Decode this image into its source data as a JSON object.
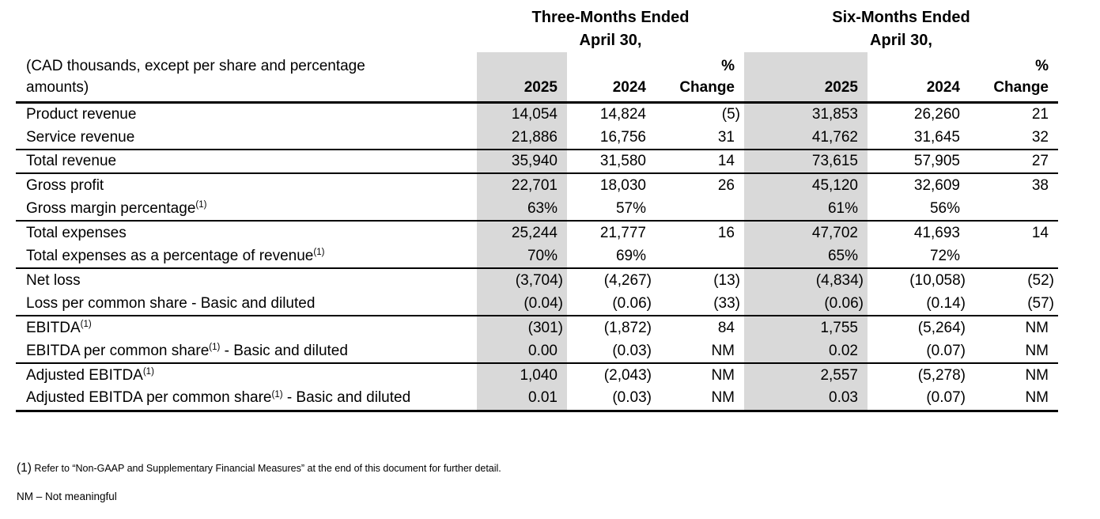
{
  "colors": {
    "shade": "#d9d9d9",
    "text": "#000000",
    "rule": "#000000",
    "background": "#ffffff"
  },
  "table": {
    "caption_line1": "(CAD thousands, except per share and percentage",
    "caption_line2": "amounts)",
    "periods": [
      {
        "title": "Three-Months Ended",
        "subtitle": "April 30,"
      },
      {
        "title": "Six-Months Ended",
        "subtitle": "April 30,"
      }
    ],
    "columns": {
      "year1": "2025",
      "year2": "2024",
      "pct_line1": "%",
      "pct_line2": "Change"
    },
    "rows": [
      {
        "label": "Product revenue",
        "sup": "",
        "suffix": "",
        "values": [
          "14,054",
          "14,824",
          "(5)",
          "31,853",
          "26,260",
          "21"
        ],
        "rule_below": false
      },
      {
        "label": "Service revenue",
        "sup": "",
        "suffix": "",
        "values": [
          "21,886",
          "16,756",
          "31",
          "41,762",
          "31,645",
          "32"
        ],
        "rule_below": true
      },
      {
        "label": "Total revenue",
        "sup": "",
        "suffix": "",
        "values": [
          "35,940",
          "31,580",
          "14",
          "73,615",
          "57,905",
          "27"
        ],
        "rule_below": true
      },
      {
        "label": "Gross profit",
        "sup": "",
        "suffix": "",
        "values": [
          "22,701",
          "18,030",
          "26",
          "45,120",
          "32,609",
          "38"
        ],
        "rule_below": false
      },
      {
        "label": "Gross margin percentage",
        "sup": "(1)",
        "suffix": "",
        "values": [
          "63%",
          "57%",
          "",
          "61%",
          "56%",
          ""
        ],
        "rule_below": true
      },
      {
        "label": "Total expenses",
        "sup": "",
        "suffix": "",
        "values": [
          "25,244",
          "21,777",
          "16",
          "47,702",
          "41,693",
          "14"
        ],
        "rule_below": false
      },
      {
        "label": "Total expenses as a percentage of revenue",
        "sup": "(1)",
        "suffix": "",
        "values": [
          "70%",
          "69%",
          "",
          "65%",
          "72%",
          ""
        ],
        "rule_below": true
      },
      {
        "label": "Net loss",
        "sup": "",
        "suffix": "",
        "values": [
          "(3,704)",
          "(4,267)",
          "(13)",
          "(4,834)",
          "(10,058)",
          "(52)"
        ],
        "rule_below": false
      },
      {
        "label": "Loss per common share - Basic and diluted",
        "sup": "",
        "suffix": "",
        "values": [
          "(0.04)",
          "(0.06)",
          "(33)",
          "(0.06)",
          "(0.14)",
          "(57)"
        ],
        "rule_below": true
      },
      {
        "label": "EBITDA",
        "sup": "(1)",
        "suffix": "",
        "values": [
          "(301)",
          "(1,872)",
          "84",
          "1,755",
          "(5,264)",
          "NM"
        ],
        "rule_below": false
      },
      {
        "label": "EBITDA per common share",
        "sup": "(1)",
        "suffix": " - Basic and diluted",
        "values": [
          "0.00",
          "(0.03)",
          "NM",
          "0.02",
          "(0.07)",
          "NM"
        ],
        "rule_below": true
      },
      {
        "label": "Adjusted EBITDA",
        "sup": "(1)",
        "suffix": "",
        "values": [
          "1,040",
          "(2,043)",
          "NM",
          "2,557",
          "(5,278)",
          "NM"
        ],
        "rule_below": false
      },
      {
        "label": "Adjusted EBITDA per common share",
        "sup": "(1)",
        "suffix": " - Basic and diluted",
        "values": [
          "0.01",
          "(0.03)",
          "NM",
          "0.03",
          "(0.07)",
          "NM"
        ],
        "rule_below": false
      }
    ]
  },
  "footnotes": {
    "fn1_marker": "(1)",
    "fn1_text": " Refer to “Non-GAAP and Supplementary Financial Measures” at the end of this document for further detail.",
    "nm_note": "NM – Not meaningful"
  }
}
